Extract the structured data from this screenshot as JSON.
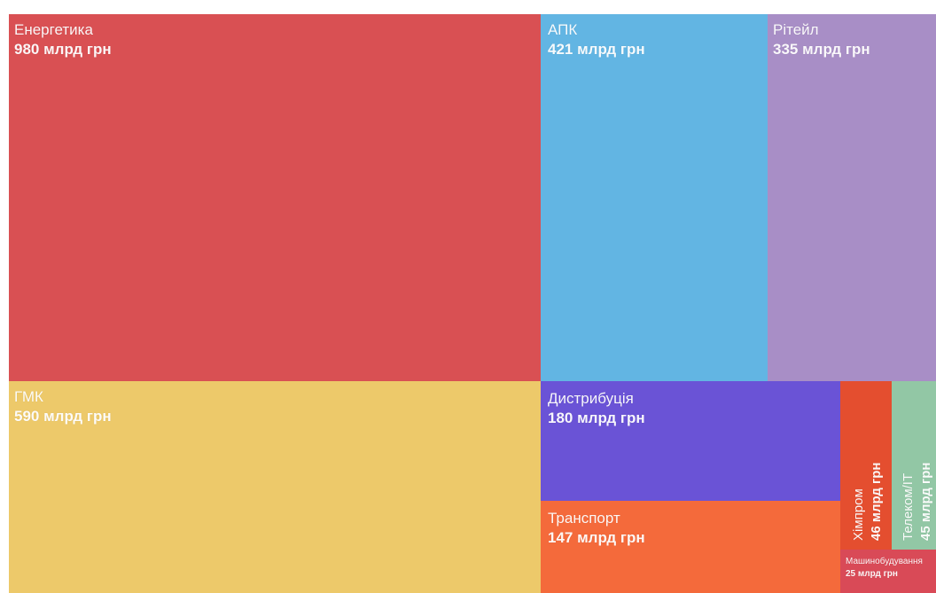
{
  "chart_data": {
    "type": "treemap",
    "unit": "млрд грн",
    "items": [
      {
        "name": "Енергетика",
        "value": 980,
        "value_label": "980 млрд грн",
        "color": "#d95053"
      },
      {
        "name": "ГМК",
        "value": 590,
        "value_label": "590 млрд грн",
        "color": "#edc96a"
      },
      {
        "name": "АПК",
        "value": 421,
        "value_label": "421 млрд грн",
        "color": "#62b5e3"
      },
      {
        "name": "Рітейл",
        "value": 335,
        "value_label": "335 млрд грн",
        "color": "#a88ec6"
      },
      {
        "name": "Дистрибуція",
        "value": 180,
        "value_label": "180 млрд грн",
        "color": "#6a53d6"
      },
      {
        "name": "Транспорт",
        "value": 147,
        "value_label": "147 млрд грн",
        "color": "#f46a3b"
      },
      {
        "name": "Хімпром",
        "value": 46,
        "value_label": "46 млрд грн",
        "color": "#e44e2f"
      },
      {
        "name": "Телеком/IT",
        "value": 45,
        "value_label": "45 млрд грн",
        "color": "#92c7a5"
      },
      {
        "name": "Машинобудування",
        "value": 25,
        "value_label": "25 млрд грн",
        "color": "#d94a57"
      }
    ]
  }
}
